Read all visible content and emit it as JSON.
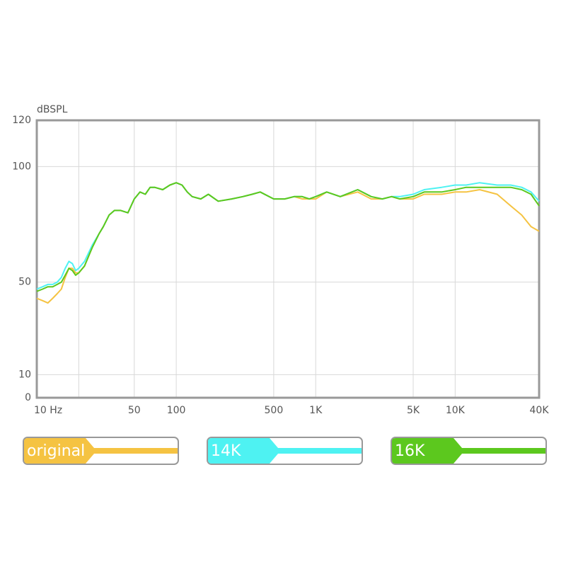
{
  "chart_data": {
    "type": "line",
    "y_label": "dBSPL",
    "xscale": "log",
    "grid": true,
    "xlim": [
      10,
      40000
    ],
    "ylim": [
      0,
      120
    ],
    "yticks": [
      0,
      10,
      50,
      100,
      120
    ],
    "xticks": [
      {
        "value": 10,
        "label": "10 Hz"
      },
      {
        "value": 20,
        "label": null
      },
      50,
      100,
      500,
      {
        "value": 1000,
        "label": "1K"
      },
      {
        "value": 5000,
        "label": "5K"
      },
      {
        "value": 10000,
        "label": "10K"
      },
      {
        "value": 40000,
        "label": "40K"
      }
    ],
    "x": [
      10,
      11,
      12,
      13,
      14,
      15,
      16,
      17,
      18,
      19,
      20,
      22,
      25,
      28,
      30,
      33,
      36,
      40,
      45,
      50,
      55,
      60,
      65,
      70,
      80,
      90,
      100,
      110,
      120,
      130,
      150,
      170,
      200,
      250,
      300,
      350,
      400,
      500,
      600,
      700,
      800,
      900,
      1000,
      1200,
      1500,
      2000,
      2500,
      3000,
      3500,
      4000,
      5000,
      6000,
      8000,
      10000,
      12000,
      15000,
      20000,
      25000,
      30000,
      35000,
      40000
    ],
    "series": [
      {
        "name": "original",
        "color": "#f5c342",
        "values": [
          43,
          42,
          41,
          43,
          45,
          47,
          52,
          56,
          56,
          54,
          54,
          57,
          65,
          71,
          74,
          79,
          81,
          81,
          80,
          86,
          89,
          88,
          91,
          91,
          90,
          92,
          93,
          92,
          89,
          87,
          86,
          88,
          85,
          86,
          87,
          88,
          89,
          86,
          86,
          87,
          86,
          86,
          86,
          89,
          87,
          89,
          86,
          86,
          87,
          86,
          86,
          88,
          88,
          89,
          89,
          90,
          88,
          83,
          79,
          74,
          72
        ]
      },
      {
        "name": "14K",
        "color": "#4ef2f2",
        "values": [
          47,
          48,
          49,
          49,
          50,
          52,
          56,
          59,
          58,
          55,
          56,
          59,
          66,
          71,
          74,
          79,
          81,
          81,
          80,
          86,
          89,
          88,
          91,
          91,
          90,
          92,
          93,
          92,
          89,
          87,
          86,
          88,
          85,
          86,
          87,
          88,
          89,
          86,
          86,
          87,
          87,
          86,
          87,
          89,
          87,
          90,
          87,
          86,
          87,
          87,
          88,
          90,
          91,
          92,
          92,
          93,
          92,
          92,
          91,
          89,
          85
        ]
      },
      {
        "name": "16K",
        "color": "#5cc81e",
        "values": [
          46,
          47,
          48,
          48,
          49,
          50,
          53,
          56,
          55,
          53,
          54,
          57,
          65,
          71,
          74,
          79,
          81,
          81,
          80,
          86,
          89,
          88,
          91,
          91,
          90,
          92,
          93,
          92,
          89,
          87,
          86,
          88,
          85,
          86,
          87,
          88,
          89,
          86,
          86,
          87,
          87,
          86,
          87,
          89,
          87,
          90,
          87,
          86,
          87,
          86,
          87,
          89,
          89,
          90,
          91,
          91,
          91,
          91,
          90,
          88,
          83
        ]
      }
    ]
  }
}
